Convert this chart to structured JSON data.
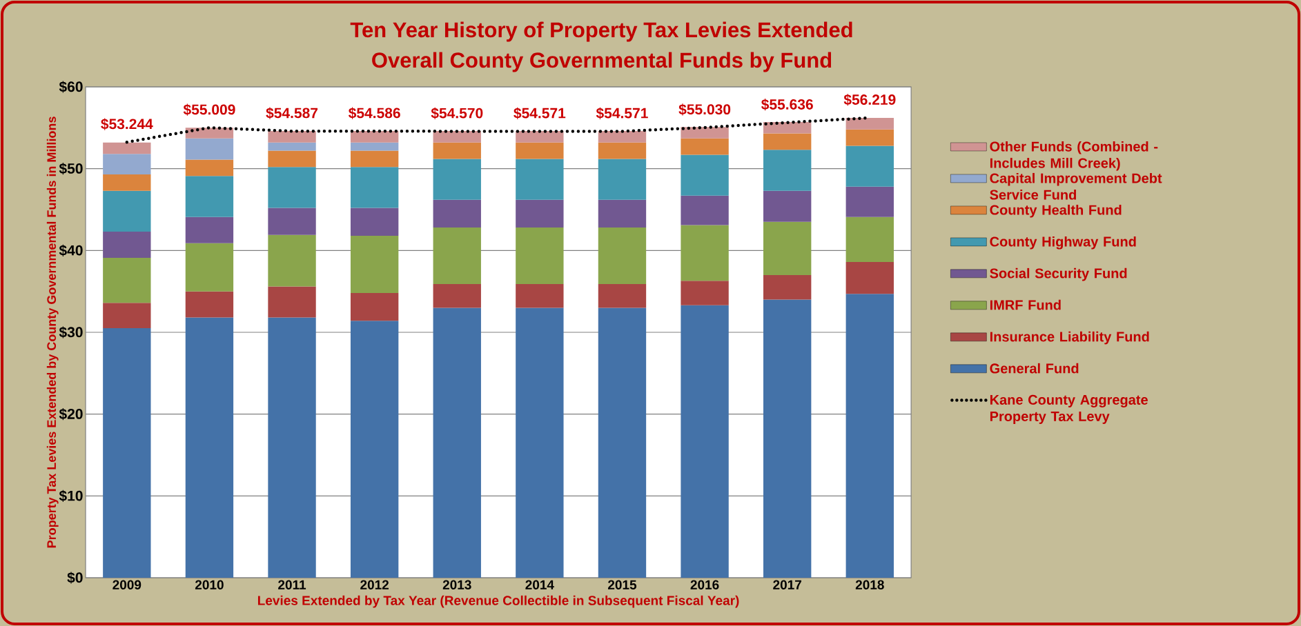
{
  "chart_data": {
    "type": "bar",
    "stacked": true,
    "title": "Ten Year History of Property Tax Levies Extended",
    "subtitle": "Overall County Governmental Funds by Fund",
    "xlabel": "Levies Extended by Tax Year (Revenue Collectible in Subsequent Fiscal Year)",
    "ylabel": "Property Tax Levies Extended by County Governmental Funds in Millions",
    "categories": [
      "2009",
      "2010",
      "2011",
      "2012",
      "2013",
      "2014",
      "2015",
      "2016",
      "2017",
      "2018"
    ],
    "series": [
      {
        "name": "General Fund",
        "color": "#4472a8",
        "values": [
          30.5,
          31.8,
          31.8,
          31.4,
          33.0,
          33.0,
          33.0,
          33.3,
          34.0,
          34.7
        ]
      },
      {
        "name": "Insurance Liability Fund",
        "color": "#a84644",
        "values": [
          3.1,
          3.2,
          3.8,
          3.4,
          2.9,
          2.9,
          2.9,
          3.0,
          3.0,
          3.9
        ]
      },
      {
        "name": "IMRF Fund",
        "color": "#8aa54c",
        "values": [
          5.5,
          5.9,
          6.3,
          7.0,
          6.9,
          6.9,
          6.9,
          6.8,
          6.5,
          5.5
        ]
      },
      {
        "name": "Social Security Fund",
        "color": "#715891",
        "values": [
          3.2,
          3.2,
          3.3,
          3.4,
          3.4,
          3.4,
          3.4,
          3.6,
          3.8,
          3.7
        ]
      },
      {
        "name": "County Highway Fund",
        "color": "#4299b0",
        "values": [
          5.0,
          5.0,
          5.0,
          5.0,
          5.0,
          5.0,
          5.0,
          5.0,
          5.0,
          5.0
        ]
      },
      {
        "name": "County Health Fund",
        "color": "#db843d",
        "values": [
          2.0,
          2.0,
          2.0,
          2.0,
          2.0,
          2.0,
          2.0,
          2.0,
          2.0,
          2.0
        ]
      },
      {
        "name": "Capital Improvement Debt Service Fund",
        "color": "#93a9cf",
        "values": [
          2.5,
          2.6,
          1.0,
          1.0,
          null,
          null,
          null,
          null,
          null,
          null
        ]
      },
      {
        "name": "Other Funds (Combined - Includes Mill Creek)",
        "color": "#d09493",
        "values": [
          1.4,
          1.3,
          1.4,
          1.4,
          1.4,
          1.4,
          1.4,
          1.4,
          1.4,
          1.4
        ]
      },
      {
        "name": "Kane County Aggregate Property Tax Levy",
        "type": "line",
        "color": "#000000",
        "line_style": "dotted",
        "marker": "none",
        "values": [
          53.244,
          55.009,
          54.587,
          54.586,
          54.57,
          54.571,
          54.571,
          55.03,
          55.636,
          56.219
        ],
        "value_labels": [
          "$53.244",
          "$55.009",
          "$54.587",
          "$54.586",
          "$54.570",
          "$54.571",
          "$54.571",
          "$55.030",
          "$55.636",
          "$56.219"
        ]
      }
    ],
    "ylim": [
      0,
      60
    ],
    "yticks": [
      {
        "value": 0,
        "label": "$0"
      },
      {
        "value": 10,
        "label": "$10"
      },
      {
        "value": 20,
        "label": "$20"
      },
      {
        "value": 30,
        "label": "$30"
      },
      {
        "value": 40,
        "label": "$40"
      },
      {
        "value": 50,
        "label": "$50"
      },
      {
        "value": 60,
        "label": "$60"
      }
    ],
    "grid": "y",
    "legend": "right"
  }
}
